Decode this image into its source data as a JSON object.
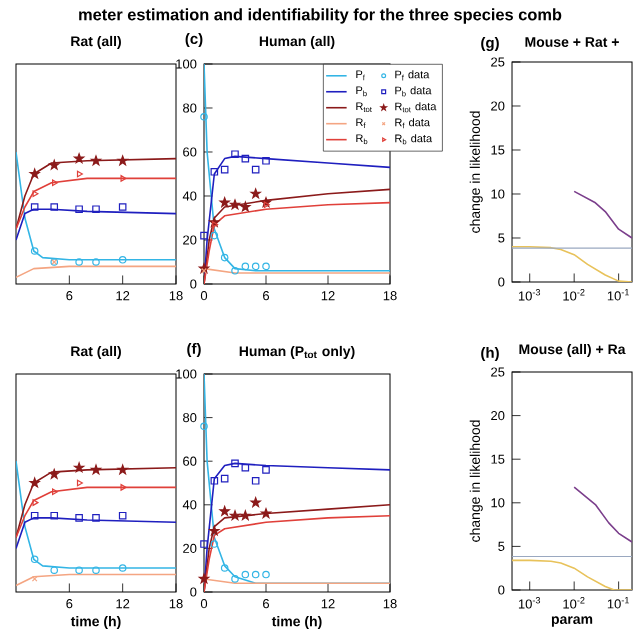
{
  "chart_data": [
    {
      "type": "line",
      "title": "Rat (all)",
      "annotations": [
        "meter estimation and identifiability for the three species comb"
      ],
      "xlim": [
        0,
        18
      ],
      "ylim": [
        0,
        100
      ],
      "xticks": [
        6,
        12,
        18
      ],
      "tick_labels": "x",
      "grid": false,
      "series": [
        {
          "color": "#33b5e5",
          "x": [
            0,
            1,
            2,
            3,
            6,
            18
          ],
          "values": [
            60,
            30,
            15,
            12,
            11,
            11
          ]
        },
        {
          "type": "scatter",
          "marker": "circle",
          "color": "#33b5e5",
          "x": [
            2.1,
            4.3,
            7.1,
            9,
            12
          ],
          "values": [
            15,
            10,
            10,
            10,
            11
          ]
        },
        {
          "color": "#1f1fbf",
          "x": [
            0,
            1,
            2,
            4,
            8,
            18
          ],
          "values": [
            20,
            32,
            34,
            34,
            33,
            32
          ]
        },
        {
          "type": "scatter",
          "marker": "square",
          "color": "#1f1fbf",
          "x": [
            2.1,
            4.3,
            7.1,
            9,
            12
          ],
          "values": [
            35,
            35,
            34,
            34,
            35
          ]
        },
        {
          "color": "#8b1a1a",
          "x": [
            0,
            1,
            2,
            4,
            8,
            18
          ],
          "values": [
            25,
            40,
            50,
            55,
            56,
            57
          ]
        },
        {
          "type": "scatter",
          "marker": "star",
          "color": "#8b1a1a",
          "x": [
            2.1,
            4.3,
            7.1,
            9,
            12
          ],
          "values": [
            50,
            54,
            57,
            56,
            56
          ]
        },
        {
          "color": "#f4a582",
          "x": [
            0,
            2,
            6,
            18
          ],
          "values": [
            3,
            7,
            8,
            8
          ]
        },
        {
          "type": "scatter",
          "marker": "cross",
          "color": "#f4a582",
          "x": [
            4.3
          ],
          "values": [
            10
          ]
        },
        {
          "color": "#e0403a",
          "x": [
            0,
            1,
            2,
            4,
            8,
            18
          ],
          "values": [
            25,
            35,
            42,
            46,
            48,
            48
          ]
        },
        {
          "type": "scatter",
          "marker": "triangle",
          "color": "#e0403a",
          "x": [
            2.1,
            4.3,
            7.1,
            12
          ],
          "values": [
            41,
            46,
            50,
            48
          ]
        }
      ]
    },
    {
      "type": "line",
      "title": "Human (all)",
      "annotations": [
        "(c)"
      ],
      "xlim": [
        0,
        18
      ],
      "ylim": [
        0,
        100
      ],
      "xticks": [
        0,
        6,
        12,
        18
      ],
      "yticks": [
        0,
        20,
        40,
        60,
        80,
        100
      ],
      "grid": false,
      "legend": "top right",
      "series": [
        {
          "name": "P$_{f}$",
          "color": "#33b5e5",
          "x": [
            0,
            0.3,
            1,
            2,
            3,
            5,
            18
          ],
          "values": [
            100,
            60,
            25,
            12,
            7,
            6,
            6
          ]
        },
        {
          "name": "P$_{f}$ data",
          "type": "scatter",
          "marker": "circle",
          "color": "#33b5e5",
          "x": [
            0,
            1,
            2,
            3,
            4,
            5,
            6
          ],
          "values": [
            76,
            22,
            12,
            6,
            8,
            8,
            8
          ]
        },
        {
          "name": "P$_{b}$",
          "color": "#1f1fbf",
          "x": [
            0,
            0.3,
            1,
            2,
            3,
            6,
            12,
            18
          ],
          "values": [
            0,
            20,
            50,
            57,
            58,
            57,
            55,
            53
          ]
        },
        {
          "name": "P$_{b}$ data",
          "type": "scatter",
          "marker": "square",
          "color": "#1f1fbf",
          "x": [
            0,
            1,
            2,
            3,
            4,
            5,
            6
          ],
          "values": [
            22,
            51,
            52,
            59,
            57,
            52,
            56
          ]
        },
        {
          "name": "R$_{tot}$",
          "color": "#8b1a1a",
          "x": [
            0,
            0.5,
            1,
            2,
            6,
            12,
            18
          ],
          "values": [
            0,
            20,
            30,
            35,
            38,
            41,
            43
          ]
        },
        {
          "name": "R$_{tot}$ data",
          "type": "scatter",
          "marker": "star",
          "color": "#8b1a1a",
          "x": [
            0,
            1,
            2,
            3,
            4,
            5,
            6
          ],
          "values": [
            7,
            28,
            37,
            36,
            35,
            41,
            37
          ]
        },
        {
          "name": "R$_{f}$",
          "color": "#f4a582",
          "x": [
            0,
            3,
            18
          ],
          "values": [
            7,
            5,
            5
          ]
        },
        {
          "name": "R$_{f}$ data",
          "type": "scatter",
          "marker": "cross",
          "color": "#f4a582",
          "x": [
            0
          ],
          "values": [
            6
          ]
        },
        {
          "name": "R$_{b}$",
          "color": "#e0403a",
          "x": [
            0,
            0.5,
            1,
            2,
            6,
            12,
            18
          ],
          "values": [
            0,
            15,
            27,
            31,
            34,
            36,
            37
          ]
        },
        {
          "name": "R$_{b}$ data",
          "type": "scatter",
          "marker": "triangle",
          "color": "#e0403a",
          "x": [
            1,
            6
          ],
          "values": [
            27,
            36
          ]
        }
      ]
    },
    {
      "type": "line",
      "title": "Mouse + Rat +",
      "ylabel": "change in likelihood",
      "annotations": [
        "(g)"
      ],
      "log": "x",
      "xlim": [
        0.0004,
        0.2
      ],
      "ylim": [
        0,
        25
      ],
      "xticks": [
        {
          "value": 0.001,
          "label": "10$^{-3}$"
        },
        {
          "value": 0.01,
          "label": "10$^{-2}$"
        },
        {
          "value": 0.1,
          "label": "10$^{-1}$"
        }
      ],
      "yticks": [
        0,
        5,
        10,
        15,
        20,
        25
      ],
      "grid": false,
      "ref_lines": [
        {
          "axis": "y",
          "value": 3.84,
          "color": "#9aa8c0"
        }
      ],
      "series": [
        {
          "color": "#7b3f8c",
          "x": [
            0.01,
            0.03,
            0.05,
            0.1,
            0.2
          ],
          "values": [
            10.3,
            9,
            8,
            6,
            5
          ]
        },
        {
          "color": "#e8c25a",
          "x": [
            0.0004,
            0.001,
            0.003,
            0.005,
            0.01,
            0.02,
            0.05,
            0.1,
            0.2
          ],
          "values": [
            4,
            4,
            3.9,
            3.7,
            3.1,
            2,
            0.8,
            0.1,
            0
          ]
        }
      ]
    },
    {
      "type": "line",
      "title": "Rat (all)",
      "xlabel": "time (h)",
      "xlim": [
        0,
        18
      ],
      "ylim": [
        0,
        100
      ],
      "xticks": [
        6,
        12,
        18
      ],
      "tick_labels": "x",
      "grid": false,
      "series": [
        {
          "color": "#33b5e5",
          "x": [
            0,
            1,
            2,
            3,
            6,
            18
          ],
          "values": [
            60,
            30,
            15,
            12,
            11,
            11
          ]
        },
        {
          "type": "scatter",
          "marker": "circle",
          "color": "#33b5e5",
          "x": [
            2.1,
            4.3,
            7.1,
            9,
            12
          ],
          "values": [
            15,
            10,
            10,
            10,
            11
          ]
        },
        {
          "color": "#1f1fbf",
          "x": [
            0,
            1,
            2,
            4,
            8,
            18
          ],
          "values": [
            20,
            32,
            34,
            34,
            33,
            32
          ]
        },
        {
          "type": "scatter",
          "marker": "square",
          "color": "#1f1fbf",
          "x": [
            2.1,
            4.3,
            7.1,
            9,
            12
          ],
          "values": [
            35,
            35,
            34,
            34,
            35
          ]
        },
        {
          "color": "#8b1a1a",
          "x": [
            0,
            1,
            2,
            4,
            8,
            18
          ],
          "values": [
            25,
            40,
            50,
            55,
            56,
            57
          ]
        },
        {
          "type": "scatter",
          "marker": "star",
          "color": "#8b1a1a",
          "x": [
            2.1,
            4.3,
            7.1,
            9,
            12
          ],
          "values": [
            50,
            54,
            57,
            56,
            56
          ]
        },
        {
          "color": "#f4a582",
          "x": [
            0,
            2,
            6,
            18
          ],
          "values": [
            3,
            7,
            8,
            8
          ]
        },
        {
          "type": "scatter",
          "marker": "cross",
          "color": "#f4a582",
          "x": [
            2.1
          ],
          "values": [
            6
          ]
        },
        {
          "color": "#e0403a",
          "x": [
            0,
            1,
            2,
            4,
            8,
            18
          ],
          "values": [
            25,
            35,
            42,
            46,
            48,
            48
          ]
        },
        {
          "type": "scatter",
          "marker": "triangle",
          "color": "#e0403a",
          "x": [
            2.1,
            4.3,
            7.1,
            12
          ],
          "values": [
            41,
            46,
            50,
            48
          ]
        }
      ]
    },
    {
      "type": "line",
      "title": "Human (P$_{tot}$ only)",
      "xlabel": "time (h)",
      "annotations": [
        "(f)"
      ],
      "xlim": [
        0,
        18
      ],
      "ylim": [
        0,
        100
      ],
      "xticks": [
        0,
        6,
        12,
        18
      ],
      "yticks": [
        0,
        20,
        40,
        60,
        80,
        100
      ],
      "grid": false,
      "series": [
        {
          "color": "#33b5e5",
          "x": [
            0,
            0.3,
            1,
            2,
            3,
            5,
            18
          ],
          "values": [
            100,
            60,
            25,
            12,
            7,
            4,
            4
          ]
        },
        {
          "type": "scatter",
          "marker": "circle",
          "color": "#33b5e5",
          "x": [
            0,
            1,
            2,
            3,
            4,
            5,
            6
          ],
          "values": [
            76,
            22,
            11,
            6,
            8,
            8,
            8
          ]
        },
        {
          "color": "#1f1fbf",
          "x": [
            0,
            0.3,
            1,
            2,
            3,
            6,
            12,
            18
          ],
          "values": [
            0,
            20,
            52,
            58,
            59,
            58,
            57,
            56
          ]
        },
        {
          "type": "scatter",
          "marker": "square",
          "color": "#1f1fbf",
          "x": [
            0,
            1,
            2,
            3,
            4,
            5,
            6
          ],
          "values": [
            22,
            51,
            52,
            59,
            57,
            51,
            56
          ]
        },
        {
          "color": "#8b1a1a",
          "x": [
            0,
            0.5,
            1,
            2,
            6,
            12,
            18
          ],
          "values": [
            0,
            20,
            30,
            34,
            36,
            38,
            40
          ]
        },
        {
          "type": "scatter",
          "marker": "star",
          "color": "#8b1a1a",
          "x": [
            0,
            1,
            2,
            3,
            4,
            5,
            6
          ],
          "values": [
            6,
            28,
            37,
            35,
            35,
            41,
            36
          ]
        },
        {
          "color": "#f4a582",
          "x": [
            0,
            3,
            18
          ],
          "values": [
            6,
            4,
            4
          ]
        },
        {
          "color": "#e0403a",
          "x": [
            0,
            0.5,
            1,
            2,
            6,
            12,
            18
          ],
          "values": [
            0,
            15,
            26,
            29,
            32,
            34,
            35
          ]
        }
      ]
    },
    {
      "type": "line",
      "title": "Mouse (all) + Ra",
      "xlabel": "param",
      "ylabel": "change in likelihood",
      "annotations": [
        "(h)"
      ],
      "log": "x",
      "xlim": [
        0.0004,
        0.2
      ],
      "ylim": [
        0,
        25
      ],
      "xticks": [
        {
          "value": 0.001,
          "label": "10$^{-3}$"
        },
        {
          "value": 0.01,
          "label": "10$^{-2}$"
        },
        {
          "value": 0.1,
          "label": "10$^{-1}$"
        }
      ],
      "yticks": [
        0,
        5,
        10,
        15,
        20,
        25
      ],
      "grid": false,
      "ref_lines": [
        {
          "axis": "y",
          "value": 3.84,
          "color": "#9aa8c0"
        }
      ],
      "series": [
        {
          "color": "#7b3f8c",
          "x": [
            0.01,
            0.03,
            0.06,
            0.1,
            0.2
          ],
          "values": [
            11.8,
            9.8,
            7.7,
            6.5,
            5.5
          ]
        },
        {
          "color": "#e8c25a",
          "x": [
            0.0004,
            0.001,
            0.003,
            0.005,
            0.01,
            0.02,
            0.05,
            0.08,
            0.2
          ],
          "values": [
            3.4,
            3.4,
            3.3,
            3.1,
            2.5,
            1.5,
            0.4,
            0,
            0
          ]
        }
      ]
    }
  ]
}
